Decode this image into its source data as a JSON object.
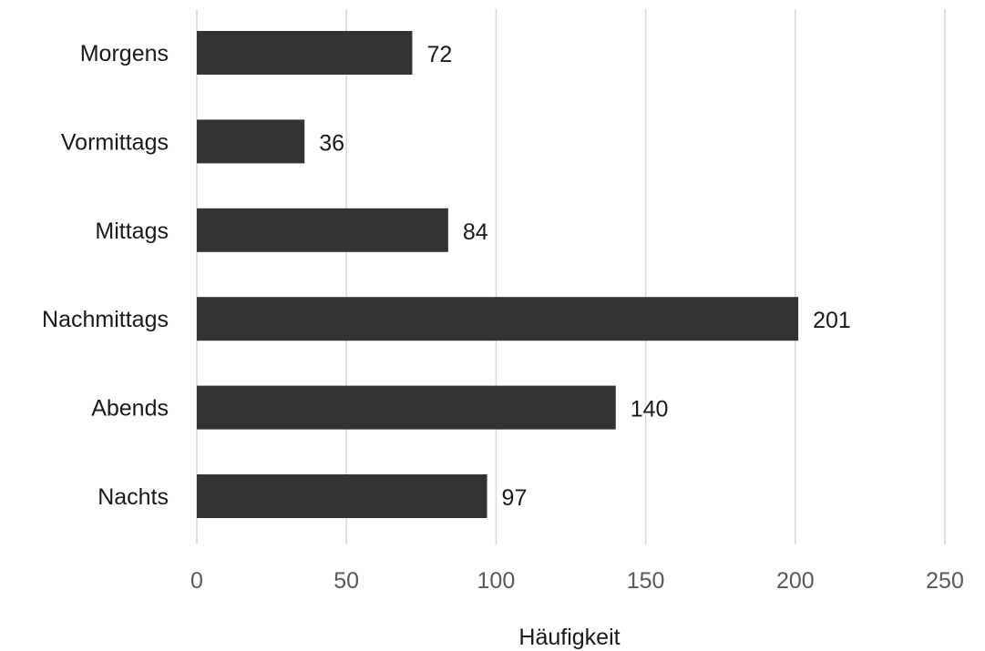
{
  "chart_data": {
    "type": "bar",
    "orientation": "horizontal",
    "categories": [
      "Morgens",
      "Vormittags",
      "Mittags",
      "Nachmittags",
      "Abends",
      "Nachts"
    ],
    "values": [
      72,
      36,
      84,
      201,
      140,
      97
    ],
    "data_labels": [
      "72",
      "36",
      "84",
      "201",
      "140",
      "97"
    ],
    "title": "",
    "xlabel": "Häufigkeit",
    "ylabel": "",
    "xlim": [
      0,
      250
    ],
    "x_ticks": [
      0,
      50,
      100,
      150,
      200,
      250
    ],
    "x_tick_labels": [
      "0",
      "50",
      "100",
      "150",
      "200",
      "250"
    ],
    "grid": "vertical",
    "legend": "none",
    "colors": {
      "bar": "#333333",
      "grid": "#d9d9d9",
      "tick_text": "#595959",
      "text": "#1a1a1a"
    }
  }
}
